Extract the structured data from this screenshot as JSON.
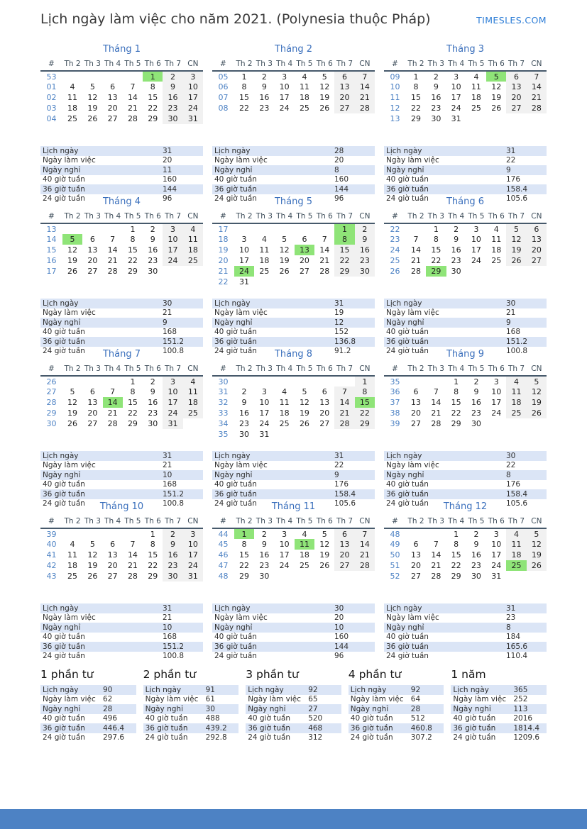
{
  "header": {
    "title": "Lịch ngày làm việc cho năm 2021. (Polynesia thuộc Pháp)",
    "brand": "TIMESLES.COM"
  },
  "colors": {
    "accent_blue": "#3a6fbc",
    "week_number_blue": "#4d82c4",
    "brand_blue": "#2b7cd6",
    "holiday_green": "#8fe478",
    "weekend_gray": "#f1f1f1",
    "stripe_blue": "#dbe5f6",
    "footer_blue": "#4d82c4"
  },
  "day_headers": [
    "#",
    "Th 2",
    "Th 3",
    "Th 4",
    "Th 5",
    "Th 6",
    "Th 7",
    "CN"
  ],
  "stat_labels": [
    "Lịch ngày",
    "Ngày làm việc",
    "Ngày nghỉ",
    "40 giờ tuần",
    "36 giờ tuần",
    "24 giờ tuần"
  ],
  "months": [
    {
      "name": "Tháng 1",
      "highlights": [
        "1"
      ],
      "weeks": [
        {
          "num": "53",
          "days": [
            "",
            "",
            "",
            "",
            "1",
            "2",
            "3"
          ]
        },
        {
          "num": "01",
          "days": [
            "4",
            "5",
            "6",
            "7",
            "8",
            "9",
            "10"
          ]
        },
        {
          "num": "02",
          "days": [
            "11",
            "12",
            "13",
            "14",
            "15",
            "16",
            "17"
          ]
        },
        {
          "num": "03",
          "days": [
            "18",
            "19",
            "20",
            "21",
            "22",
            "23",
            "24"
          ]
        },
        {
          "num": "04",
          "days": [
            "25",
            "26",
            "27",
            "28",
            "29",
            "30",
            "31"
          ]
        }
      ],
      "stats": [
        "31",
        "20",
        "11",
        "160",
        "144",
        "96"
      ]
    },
    {
      "name": "Tháng 2",
      "highlights": [],
      "weeks": [
        {
          "num": "05",
          "days": [
            "1",
            "2",
            "3",
            "4",
            "5",
            "6",
            "7"
          ]
        },
        {
          "num": "06",
          "days": [
            "8",
            "9",
            "10",
            "11",
            "12",
            "13",
            "14"
          ]
        },
        {
          "num": "07",
          "days": [
            "15",
            "16",
            "17",
            "18",
            "19",
            "20",
            "21"
          ]
        },
        {
          "num": "08",
          "days": [
            "22",
            "23",
            "24",
            "25",
            "26",
            "27",
            "28"
          ]
        }
      ],
      "stats": [
        "28",
        "20",
        "8",
        "160",
        "144",
        "96"
      ]
    },
    {
      "name": "Tháng 3",
      "highlights": [
        "5"
      ],
      "weeks": [
        {
          "num": "09",
          "days": [
            "1",
            "2",
            "3",
            "4",
            "5",
            "6",
            "7"
          ]
        },
        {
          "num": "10",
          "days": [
            "8",
            "9",
            "10",
            "11",
            "12",
            "13",
            "14"
          ]
        },
        {
          "num": "11",
          "days": [
            "15",
            "16",
            "17",
            "18",
            "19",
            "20",
            "21"
          ]
        },
        {
          "num": "12",
          "days": [
            "22",
            "23",
            "24",
            "25",
            "26",
            "27",
            "28"
          ]
        },
        {
          "num": "13",
          "days": [
            "29",
            "30",
            "31",
            "",
            "",
            "",
            ""
          ]
        }
      ],
      "stats": [
        "31",
        "22",
        "9",
        "176",
        "158.4",
        "105.6"
      ]
    },
    {
      "name": "Tháng 4",
      "highlights": [
        "5"
      ],
      "weeks": [
        {
          "num": "13",
          "days": [
            "",
            "",
            "",
            "1",
            "2",
            "3",
            "4"
          ]
        },
        {
          "num": "14",
          "days": [
            "5",
            "6",
            "7",
            "8",
            "9",
            "10",
            "11"
          ]
        },
        {
          "num": "15",
          "days": [
            "12",
            "13",
            "14",
            "15",
            "16",
            "17",
            "18"
          ]
        },
        {
          "num": "16",
          "days": [
            "19",
            "20",
            "21",
            "22",
            "23",
            "24",
            "25"
          ]
        },
        {
          "num": "17",
          "days": [
            "26",
            "27",
            "28",
            "29",
            "30",
            "",
            ""
          ]
        }
      ],
      "stats": [
        "30",
        "21",
        "9",
        "168",
        "151.2",
        "100.8"
      ]
    },
    {
      "name": "Tháng 5",
      "highlights": [
        "1",
        "8",
        "13",
        "24"
      ],
      "weeks": [
        {
          "num": "17",
          "days": [
            "",
            "",
            "",
            "",
            "",
            "1",
            "2"
          ]
        },
        {
          "num": "18",
          "days": [
            "3",
            "4",
            "5",
            "6",
            "7",
            "8",
            "9"
          ]
        },
        {
          "num": "19",
          "days": [
            "10",
            "11",
            "12",
            "13",
            "14",
            "15",
            "16"
          ]
        },
        {
          "num": "20",
          "days": [
            "17",
            "18",
            "19",
            "20",
            "21",
            "22",
            "23"
          ]
        },
        {
          "num": "21",
          "days": [
            "24",
            "25",
            "26",
            "27",
            "28",
            "29",
            "30"
          ]
        },
        {
          "num": "22",
          "days": [
            "31",
            "",
            "",
            "",
            "",
            "",
            ""
          ]
        }
      ],
      "stats": [
        "31",
        "19",
        "12",
        "152",
        "136.8",
        "91.2"
      ]
    },
    {
      "name": "Tháng 6",
      "highlights": [
        "29"
      ],
      "weeks": [
        {
          "num": "22",
          "days": [
            "",
            "1",
            "2",
            "3",
            "4",
            "5",
            "6"
          ]
        },
        {
          "num": "23",
          "days": [
            "7",
            "8",
            "9",
            "10",
            "11",
            "12",
            "13"
          ]
        },
        {
          "num": "24",
          "days": [
            "14",
            "15",
            "16",
            "17",
            "18",
            "19",
            "20"
          ]
        },
        {
          "num": "25",
          "days": [
            "21",
            "22",
            "23",
            "24",
            "25",
            "26",
            "27"
          ]
        },
        {
          "num": "26",
          "days": [
            "28",
            "29",
            "30",
            "",
            "",
            "",
            ""
          ]
        }
      ],
      "stats": [
        "30",
        "21",
        "9",
        "168",
        "151.2",
        "100.8"
      ]
    },
    {
      "name": "Tháng 7",
      "highlights": [
        "14"
      ],
      "weeks": [
        {
          "num": "26",
          "days": [
            "",
            "",
            "",
            "1",
            "2",
            "3",
            "4"
          ]
        },
        {
          "num": "27",
          "days": [
            "5",
            "6",
            "7",
            "8",
            "9",
            "10",
            "11"
          ]
        },
        {
          "num": "28",
          "days": [
            "12",
            "13",
            "14",
            "15",
            "16",
            "17",
            "18"
          ]
        },
        {
          "num": "29",
          "days": [
            "19",
            "20",
            "21",
            "22",
            "23",
            "24",
            "25"
          ]
        },
        {
          "num": "30",
          "days": [
            "26",
            "27",
            "28",
            "29",
            "30",
            "31",
            ""
          ]
        }
      ],
      "stats": [
        "31",
        "21",
        "10",
        "168",
        "151.2",
        "100.8"
      ]
    },
    {
      "name": "Tháng 8",
      "highlights": [
        "15"
      ],
      "weeks": [
        {
          "num": "30",
          "days": [
            "",
            "",
            "",
            "",
            "",
            "",
            "1"
          ]
        },
        {
          "num": "31",
          "days": [
            "2",
            "3",
            "4",
            "5",
            "6",
            "7",
            "8"
          ]
        },
        {
          "num": "32",
          "days": [
            "9",
            "10",
            "11",
            "12",
            "13",
            "14",
            "15"
          ]
        },
        {
          "num": "33",
          "days": [
            "16",
            "17",
            "18",
            "19",
            "20",
            "21",
            "22"
          ]
        },
        {
          "num": "34",
          "days": [
            "23",
            "24",
            "25",
            "26",
            "27",
            "28",
            "29"
          ]
        },
        {
          "num": "35",
          "days": [
            "30",
            "31",
            "",
            "",
            "",
            "",
            ""
          ]
        }
      ],
      "stats": [
        "31",
        "22",
        "9",
        "176",
        "158.4",
        "105.6"
      ]
    },
    {
      "name": "Tháng 9",
      "highlights": [],
      "weeks": [
        {
          "num": "35",
          "days": [
            "",
            "",
            "1",
            "2",
            "3",
            "4",
            "5"
          ]
        },
        {
          "num": "36",
          "days": [
            "6",
            "7",
            "8",
            "9",
            "10",
            "11",
            "12"
          ]
        },
        {
          "num": "37",
          "days": [
            "13",
            "14",
            "15",
            "16",
            "17",
            "18",
            "19"
          ]
        },
        {
          "num": "38",
          "days": [
            "20",
            "21",
            "22",
            "23",
            "24",
            "25",
            "26"
          ]
        },
        {
          "num": "39",
          "days": [
            "27",
            "28",
            "29",
            "30",
            "",
            "",
            ""
          ]
        }
      ],
      "stats": [
        "30",
        "22",
        "8",
        "176",
        "158.4",
        "105.6"
      ]
    },
    {
      "name": "Tháng 10",
      "highlights": [],
      "weeks": [
        {
          "num": "39",
          "days": [
            "",
            "",
            "",
            "",
            "1",
            "2",
            "3"
          ]
        },
        {
          "num": "40",
          "days": [
            "4",
            "5",
            "6",
            "7",
            "8",
            "9",
            "10"
          ]
        },
        {
          "num": "41",
          "days": [
            "11",
            "12",
            "13",
            "14",
            "15",
            "16",
            "17"
          ]
        },
        {
          "num": "42",
          "days": [
            "18",
            "19",
            "20",
            "21",
            "22",
            "23",
            "24"
          ]
        },
        {
          "num": "43",
          "days": [
            "25",
            "26",
            "27",
            "28",
            "29",
            "30",
            "31"
          ]
        }
      ],
      "stats": [
        "31",
        "21",
        "10",
        "168",
        "151.2",
        "100.8"
      ]
    },
    {
      "name": "Tháng 11",
      "highlights": [
        "1",
        "11"
      ],
      "weeks": [
        {
          "num": "44",
          "days": [
            "1",
            "2",
            "3",
            "4",
            "5",
            "6",
            "7"
          ]
        },
        {
          "num": "45",
          "days": [
            "8",
            "9",
            "10",
            "11",
            "12",
            "13",
            "14"
          ]
        },
        {
          "num": "46",
          "days": [
            "15",
            "16",
            "17",
            "18",
            "19",
            "20",
            "21"
          ]
        },
        {
          "num": "47",
          "days": [
            "22",
            "23",
            "24",
            "25",
            "26",
            "27",
            "28"
          ]
        },
        {
          "num": "48",
          "days": [
            "29",
            "30",
            "",
            "",
            "",
            "",
            ""
          ]
        }
      ],
      "stats": [
        "30",
        "20",
        "10",
        "160",
        "144",
        "96"
      ]
    },
    {
      "name": "Tháng 12",
      "highlights": [
        "25"
      ],
      "weeks": [
        {
          "num": "48",
          "days": [
            "",
            "",
            "1",
            "2",
            "3",
            "4",
            "5"
          ]
        },
        {
          "num": "49",
          "days": [
            "6",
            "7",
            "8",
            "9",
            "10",
            "11",
            "12"
          ]
        },
        {
          "num": "50",
          "days": [
            "13",
            "14",
            "15",
            "16",
            "17",
            "18",
            "19"
          ]
        },
        {
          "num": "51",
          "days": [
            "20",
            "21",
            "22",
            "23",
            "24",
            "25",
            "26"
          ]
        },
        {
          "num": "52",
          "days": [
            "27",
            "28",
            "29",
            "30",
            "31",
            "",
            ""
          ]
        }
      ],
      "stats": [
        "31",
        "23",
        "8",
        "184",
        "165.6",
        "110.4"
      ]
    }
  ],
  "summaries": [
    {
      "title": "1 phần tư",
      "stats": [
        "90",
        "62",
        "28",
        "496",
        "446.4",
        "297.6"
      ]
    },
    {
      "title": "2 phần tư",
      "stats": [
        "91",
        "61",
        "30",
        "488",
        "439.2",
        "292.8"
      ]
    },
    {
      "title": "3 phần tư",
      "stats": [
        "92",
        "65",
        "27",
        "520",
        "468",
        "312"
      ]
    },
    {
      "title": "4 phần tư",
      "stats": [
        "92",
        "64",
        "28",
        "512",
        "460.8",
        "307.2"
      ]
    },
    {
      "title": "1 năm",
      "stats": [
        "365",
        "252",
        "113",
        "2016",
        "1814.4",
        "1209.6"
      ]
    }
  ]
}
